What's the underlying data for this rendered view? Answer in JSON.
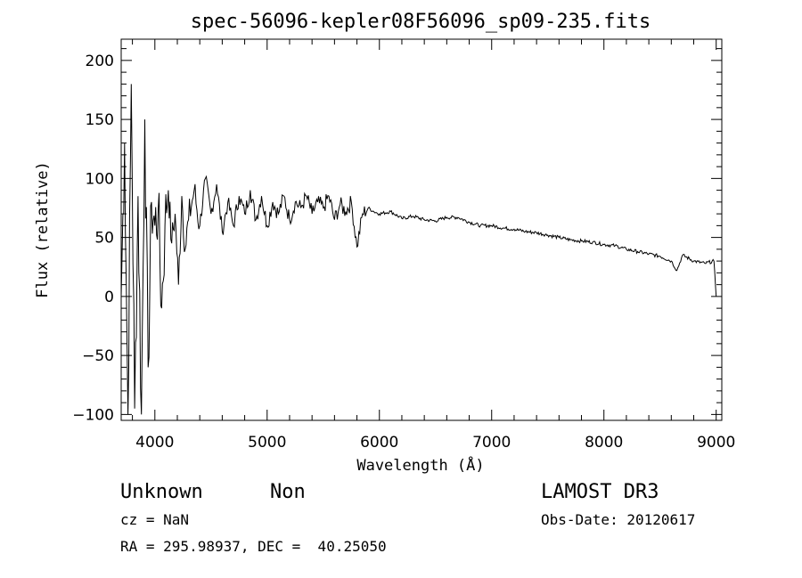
{
  "chart_data": {
    "type": "line",
    "title": "spec-56096-kepler08F56096_sp09-235.fits",
    "xlabel": "Wavelength (Å)",
    "ylabel": "Flux (relative)",
    "xlim": [
      3700,
      9050
    ],
    "ylim": [
      -105,
      218
    ],
    "x_ticks": [
      4000,
      5000,
      6000,
      7000,
      8000,
      9000
    ],
    "y_ticks": [
      -100,
      -50,
      0,
      50,
      100,
      150,
      200
    ],
    "x_tick_labels": [
      "4000",
      "5000",
      "6000",
      "7000",
      "8000",
      "9000"
    ],
    "y_tick_labels": [
      "−100",
      "−50",
      "0",
      "50",
      "100",
      "150",
      "200"
    ],
    "grid": false,
    "series": [
      {
        "name": "spectrum",
        "x": [
          3700,
          3730,
          3760,
          3790,
          3820,
          3850,
          3880,
          3910,
          3940,
          3970,
          4000,
          4030,
          4060,
          4090,
          4120,
          4150,
          4180,
          4210,
          4240,
          4270,
          4300,
          4350,
          4400,
          4450,
          4500,
          4550,
          4600,
          4650,
          4700,
          4750,
          4800,
          4850,
          4900,
          4950,
          5000,
          5050,
          5100,
          5150,
          5200,
          5250,
          5300,
          5350,
          5400,
          5450,
          5500,
          5550,
          5600,
          5650,
          5700,
          5750,
          5800,
          5850,
          5900,
          5950,
          6000,
          6100,
          6200,
          6300,
          6400,
          6500,
          6600,
          6700,
          6800,
          6900,
          7000,
          7100,
          7200,
          7300,
          7400,
          7500,
          7600,
          7700,
          7800,
          7900,
          8000,
          8100,
          8200,
          8300,
          8400,
          8500,
          8600,
          8650,
          8700,
          8800,
          8900,
          8980,
          9000
        ],
        "values": [
          0,
          130,
          -100,
          180,
          -95,
          85,
          -100,
          150,
          -60,
          80,
          60,
          75,
          -10,
          60,
          90,
          45,
          70,
          10,
          85,
          40,
          65,
          90,
          60,
          100,
          70,
          95,
          55,
          80,
          60,
          85,
          70,
          90,
          65,
          85,
          60,
          80,
          70,
          85,
          65,
          80,
          75,
          85,
          70,
          80,
          75,
          85,
          65,
          78,
          72,
          80,
          42,
          70,
          75,
          72,
          70,
          72,
          66,
          68,
          65,
          64,
          67,
          67,
          63,
          60,
          60,
          58,
          57,
          55,
          54,
          52,
          50,
          48,
          47,
          46,
          44,
          43,
          40,
          38,
          36,
          34,
          30,
          22,
          35,
          30,
          28,
          30,
          0
        ]
      }
    ]
  },
  "footer": {
    "object_class": "Unknown",
    "object_subclass": "Non",
    "survey": "LAMOST DR3",
    "cz": "cz = NaN",
    "obs_date": "Obs-Date: 20120617",
    "coords": "RA = 295.98937, DEC =  40.25050"
  }
}
